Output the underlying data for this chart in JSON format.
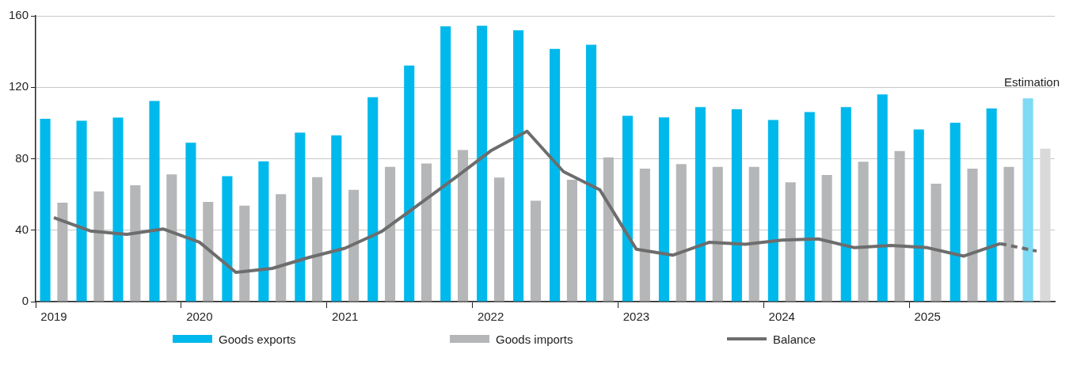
{
  "chart_data": {
    "type": "bar",
    "categories": [
      "2019",
      null,
      null,
      null,
      "2020",
      null,
      null,
      null,
      "2021",
      null,
      null,
      null,
      "2022",
      null,
      null,
      null,
      "2023",
      null,
      null,
      null,
      "2024",
      null,
      null,
      null,
      "2025",
      null,
      null,
      null
    ],
    "ylim": [
      0,
      160
    ],
    "yticks": [
      0,
      40,
      80,
      120,
      160
    ],
    "grid": "y",
    "legend": "bottom",
    "annotations": [
      "Estimation"
    ],
    "series": [
      {
        "name": "Goods exports",
        "color": "#00b9ec",
        "colors": [
          "#00b9ec",
          "#00b9ec",
          "#00b9ec",
          "#00b9ec",
          "#00b9ec",
          "#00b9ec",
          "#00b9ec",
          "#00b9ec",
          "#00b9ec",
          "#00b9ec",
          "#00b9ec",
          "#00b9ec",
          "#00b9ec",
          "#00b9ec",
          "#00b9ec",
          "#00b9ec",
          "#00b9ec",
          "#00b9ec",
          "#00b9ec",
          "#00b9ec",
          "#00b9ec",
          "#00b9ec",
          "#00b9ec",
          "#00b9ec",
          "#00b9ec",
          "#00b9ec",
          "#00b9ec",
          "#7fdaf3"
        ],
        "values": [
          102.4,
          101.3,
          103,
          112.3,
          89,
          70.3,
          78.6,
          94.6,
          93.1,
          114.5,
          132.2,
          154.1,
          154.5,
          151.9,
          141.5,
          143.8,
          104,
          103.2,
          108.9,
          107.7,
          101.7,
          106.2,
          108.9,
          116,
          96.4,
          100.2,
          108.1,
          113.8
        ]
      },
      {
        "name": "Goods imports",
        "color": "#b5b6b8",
        "colors": [
          "#b5b6b8",
          "#b5b6b8",
          "#b5b6b8",
          "#b5b6b8",
          "#b5b6b8",
          "#b5b6b8",
          "#b5b6b8",
          "#b5b6b8",
          "#b5b6b8",
          "#b5b6b8",
          "#b5b6b8",
          "#b5b6b8",
          "#b5b6b8",
          "#b5b6b8",
          "#b5b6b8",
          "#b5b6b8",
          "#b5b6b8",
          "#b5b6b8",
          "#b5b6b8",
          "#b5b6b8",
          "#b5b6b8",
          "#b5b6b8",
          "#b5b6b8",
          "#b5b6b8",
          "#b5b6b8",
          "#b5b6b8",
          "#b5b6b8",
          "#d9d9d9"
        ],
        "values": [
          55.4,
          61.7,
          65.1,
          71.2,
          55.8,
          53.7,
          60.2,
          69.7,
          62.6,
          75.5,
          77.3,
          84.9,
          69.5,
          56.5,
          68.3,
          80.8,
          74.5,
          77,
          75.5,
          75.5,
          66.8,
          70.9,
          78.3,
          84.3,
          66,
          74.5,
          75.5,
          85.7
        ]
      },
      {
        "name": "Balance",
        "type": "line",
        "color": "#6d6d6d",
        "line_style": "solid",
        "values": [
          47,
          39.6,
          37.7,
          40.7,
          33.3,
          16.4,
          18.6,
          24.7,
          29.9,
          39.2,
          54,
          69,
          84.4,
          95.4,
          72.8,
          62.6,
          29.4,
          26,
          33.2,
          32.1,
          34.5,
          35.1,
          30.2,
          31.5,
          30.2,
          25.5,
          32.5,
          null
        ]
      },
      {
        "type": "line",
        "color": "#6d6d6d",
        "line_style": "dashed",
        "values": [
          null,
          null,
          null,
          null,
          null,
          null,
          null,
          null,
          null,
          null,
          null,
          null,
          null,
          null,
          null,
          null,
          null,
          null,
          null,
          null,
          null,
          null,
          null,
          null,
          null,
          null,
          32.5,
          28.3
        ]
      }
    ]
  }
}
